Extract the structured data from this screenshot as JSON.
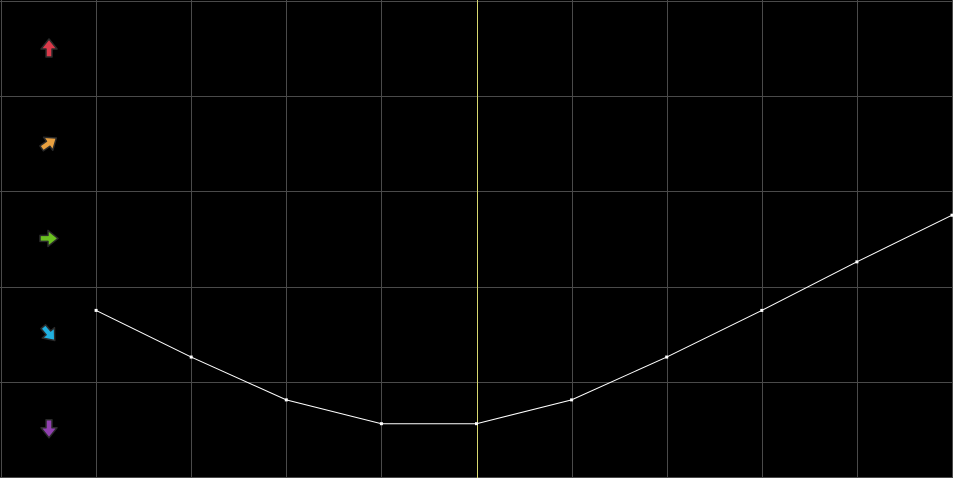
{
  "colors": {
    "background": "#000000",
    "grid": "#4a4a4a",
    "cursor_line": "#d8d870",
    "curve": "#ffffff"
  },
  "grid": {
    "columns": 10,
    "rows": 5
  },
  "direction_rows": [
    {
      "icon": "arrow-up-icon",
      "direction": "up",
      "angle": 0,
      "color": "#d93a4a"
    },
    {
      "icon": "arrow-up-right-icon",
      "direction": "up-right",
      "angle": 55,
      "color": "#e8a040"
    },
    {
      "icon": "arrow-right-icon",
      "direction": "right",
      "angle": 90,
      "color": "#6ac020"
    },
    {
      "icon": "arrow-down-right-icon",
      "direction": "down-right",
      "angle": 140,
      "color": "#20b0e0"
    },
    {
      "icon": "arrow-down-icon",
      "direction": "down",
      "angle": 180,
      "color": "#9040b0"
    }
  ],
  "cursor_column": 5,
  "curve_points": [
    1.75,
    1.26,
    0.81,
    0.56,
    0.56,
    0.81,
    1.26,
    1.75,
    2.26,
    2.75
  ]
}
